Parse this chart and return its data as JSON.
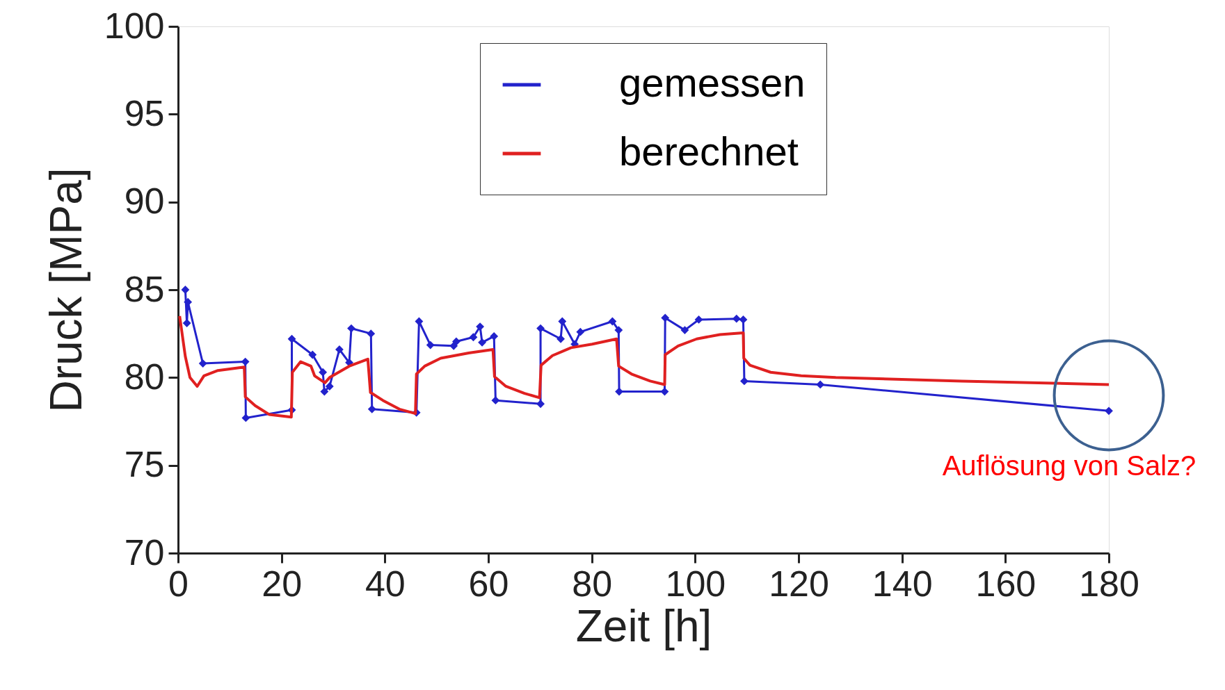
{
  "chart_data": {
    "type": "line",
    "xlabel": "Zeit [h]",
    "ylabel": "Druck [MPa]",
    "xlim": [
      0,
      180
    ],
    "xticks": [
      0,
      20,
      40,
      60,
      80,
      100,
      120,
      140,
      160,
      180
    ],
    "ylim": [
      70,
      100
    ],
    "yticks": [
      70,
      75,
      80,
      85,
      90,
      95,
      100
    ],
    "grid": false,
    "legend": "top",
    "line_style": "solid",
    "series": [
      {
        "name": "gemessen",
        "color": "#2222cc",
        "marker": "diamond",
        "x": [
          1.4,
          1.7,
          1.9,
          4.8,
          13.0,
          13.1,
          22.0,
          22.0,
          26.0,
          28.0,
          28.3,
          29.3,
          31.2,
          33.1,
          33.5,
          37.3,
          37.5,
          46.1,
          46.6,
          48.8,
          53.3,
          53.8,
          57.1,
          58.4,
          58.8,
          61.1,
          61.4,
          70.1,
          70.1,
          74.0,
          74.3,
          76.7,
          77.8,
          84.0,
          85.2,
          85.3,
          94.1,
          94.2,
          98.0,
          100.7,
          108.0,
          109.3,
          109.5,
          124.2,
          180
        ],
        "values": [
          85.0,
          83.1,
          84.3,
          80.8,
          80.9,
          77.7,
          78.15,
          82.2,
          81.3,
          80.3,
          79.2,
          79.5,
          81.6,
          80.85,
          82.8,
          82.5,
          78.2,
          78.0,
          83.2,
          81.85,
          81.8,
          82.05,
          82.3,
          82.9,
          82.0,
          82.35,
          78.7,
          78.5,
          82.8,
          82.2,
          83.2,
          81.9,
          82.6,
          83.2,
          82.7,
          79.2,
          79.2,
          83.4,
          82.7,
          83.3,
          83.35,
          83.3,
          79.8,
          79.6,
          78.1
        ]
      },
      {
        "name": "berechnet",
        "color": "#e02020",
        "marker": "none",
        "x": [
          0.3,
          1.4,
          2.3,
          3.7,
          5.0,
          7.7,
          12.8,
          13.0,
          14.9,
          17.6,
          21.9,
          22.1,
          23.7,
          25.7,
          26.4,
          28.4,
          29.3,
          33.1,
          36.7,
          37.2,
          39.6,
          42.8,
          45.9,
          46.1,
          47.7,
          50.8,
          56.2,
          60.9,
          61.2,
          63.4,
          67.0,
          69.9,
          70.2,
          72.4,
          76.0,
          80.1,
          84.8,
          85.2,
          87.7,
          91.3,
          94.1,
          94.2,
          96.7,
          100.3,
          104.8,
          109.3,
          109.4,
          110.6,
          114.6,
          120.5,
          127.2,
          151.6,
          180
        ],
        "values": [
          83.5,
          81.2,
          80.0,
          79.5,
          80.1,
          80.4,
          80.6,
          78.9,
          78.4,
          77.9,
          77.75,
          80.3,
          80.9,
          80.65,
          80.1,
          79.7,
          80.0,
          80.65,
          81.05,
          79.15,
          78.7,
          78.2,
          77.95,
          80.2,
          80.65,
          81.1,
          81.4,
          81.6,
          80.05,
          79.5,
          79.1,
          78.85,
          80.7,
          81.25,
          81.7,
          81.9,
          82.2,
          80.65,
          80.2,
          79.8,
          79.6,
          81.3,
          81.8,
          82.2,
          82.45,
          82.55,
          81.1,
          80.7,
          80.3,
          80.1,
          80.0,
          79.8,
          79.6
        ]
      }
    ],
    "annotations": [
      "Auflösung von Salz?"
    ]
  }
}
